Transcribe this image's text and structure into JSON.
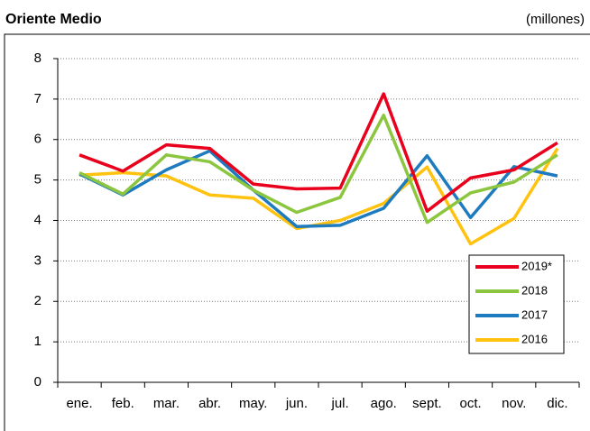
{
  "chart_data": {
    "type": "line",
    "title": "Oriente Medio",
    "subtitle": "(millones)",
    "categories": [
      "ene.",
      "feb.",
      "mar.",
      "abr.",
      "may.",
      "jun.",
      "jul.",
      "ago.",
      "sept.",
      "oct.",
      "nov.",
      "dic."
    ],
    "series": [
      {
        "name": "2019*",
        "color": "#e8001c",
        "values": [
          5.62,
          5.22,
          5.87,
          5.78,
          4.9,
          4.78,
          4.8,
          7.13,
          4.23,
          5.05,
          5.25,
          5.92
        ]
      },
      {
        "name": "2018",
        "color": "#8cc63e",
        "values": [
          5.18,
          4.65,
          5.62,
          5.45,
          4.75,
          4.2,
          4.57,
          6.6,
          3.95,
          4.68,
          4.95,
          5.62
        ]
      },
      {
        "name": "2017",
        "color": "#1f7bbf",
        "values": [
          5.15,
          4.63,
          5.25,
          5.72,
          4.75,
          3.85,
          3.88,
          4.3,
          5.6,
          4.07,
          5.33,
          5.1
        ]
      },
      {
        "name": "2016",
        "color": "#ffc20e",
        "values": [
          5.12,
          5.18,
          5.1,
          4.63,
          4.55,
          3.8,
          4.0,
          4.42,
          5.32,
          3.42,
          4.05,
          5.78
        ]
      }
    ],
    "ylim": [
      0,
      8
    ],
    "yticks": [
      0,
      1,
      2,
      3,
      4,
      5,
      6,
      7,
      8
    ],
    "grid": true,
    "legend": "lower-right"
  }
}
